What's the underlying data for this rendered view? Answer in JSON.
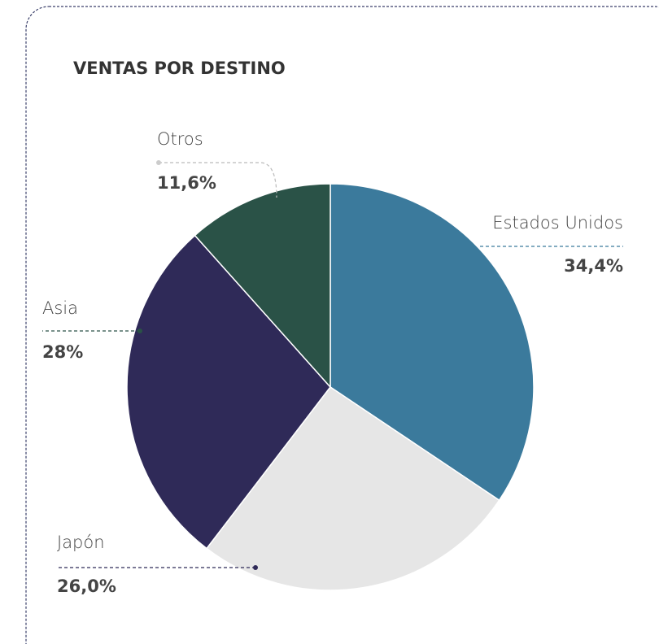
{
  "chart_data": {
    "type": "pie",
    "title": "VENTAS POR DESTINO",
    "categories": [
      "Estados Unidos",
      "Japón",
      "Asia",
      "Otros"
    ],
    "values": [
      34.4,
      26.0,
      28,
      11.6
    ],
    "value_labels": [
      "34,4%",
      "26,0%",
      "28%",
      "11,6%"
    ],
    "colors": [
      "#3b7a9c",
      "#e6e6e6",
      "#2f2a58",
      "#2a5247"
    ]
  }
}
